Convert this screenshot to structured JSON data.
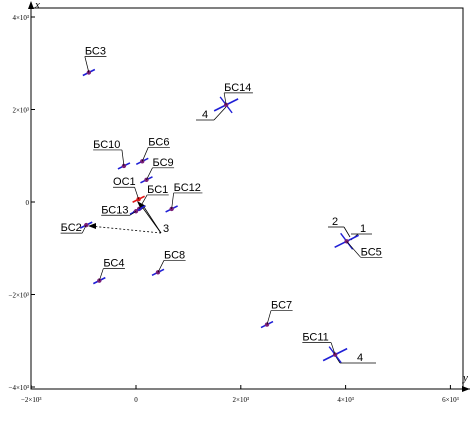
{
  "x_axis_label": "y",
  "y_axis_label": "x",
  "x_ticks": [
    {
      "value": -2000,
      "label": "−2×10³"
    },
    {
      "value": 0,
      "label": "0"
    },
    {
      "value": 2000,
      "label": "2×10³"
    },
    {
      "value": 4000,
      "label": "4×10³"
    },
    {
      "value": 6000,
      "label": "6×10³"
    }
  ],
  "y_ticks": [
    {
      "value": 4000,
      "label": "4×10³"
    },
    {
      "value": 2000,
      "label": "2×10³"
    },
    {
      "value": 0,
      "label": "0"
    },
    {
      "value": -2000,
      "label": "−2×10³"
    },
    {
      "value": -4000,
      "label": "−4×10³"
    }
  ],
  "stations": [
    {
      "label": "БС3",
      "y": -900,
      "x": 2800
    },
    {
      "label": "БС14",
      "y": 1720,
      "x": 2100
    },
    {
      "label": "БС10",
      "y": -230,
      "x": 780
    },
    {
      "label": "БС6",
      "y": 120,
      "x": 880
    },
    {
      "label": "БС9",
      "y": 200,
      "x": 480
    },
    {
      "label": "ОС1",
      "y": 50,
      "x": 60
    },
    {
      "label": "БС1",
      "y": 60,
      "x": -150
    },
    {
      "label": "БС12",
      "y": 680,
      "x": -150
    },
    {
      "label": "БС13",
      "y": 0,
      "x": -200
    },
    {
      "label": "БС2",
      "y": -950,
      "x": -500
    },
    {
      "label": "БС4",
      "y": -700,
      "x": -1700
    },
    {
      "label": "БС8",
      "y": 420,
      "x": -1520
    },
    {
      "label": "БС5",
      "y": 4020,
      "x": -850
    },
    {
      "label": "БС7",
      "y": 2500,
      "x": -2650
    },
    {
      "label": "БС11",
      "y": 3800,
      "x": -3300
    }
  ],
  "annotations": [
    {
      "text": "1",
      "near": "БС5"
    },
    {
      "text": "2",
      "near": "БС5"
    },
    {
      "text": "3",
      "near": "ОС1"
    },
    {
      "text": "4",
      "near": "БС14"
    },
    {
      "text": "4",
      "near": "БС11"
    }
  ],
  "colors": {
    "station_mark": "#1f1fd6",
    "station_dot": "#7a1f7a",
    "os_mark": "#e01818",
    "line": "#000000"
  }
}
